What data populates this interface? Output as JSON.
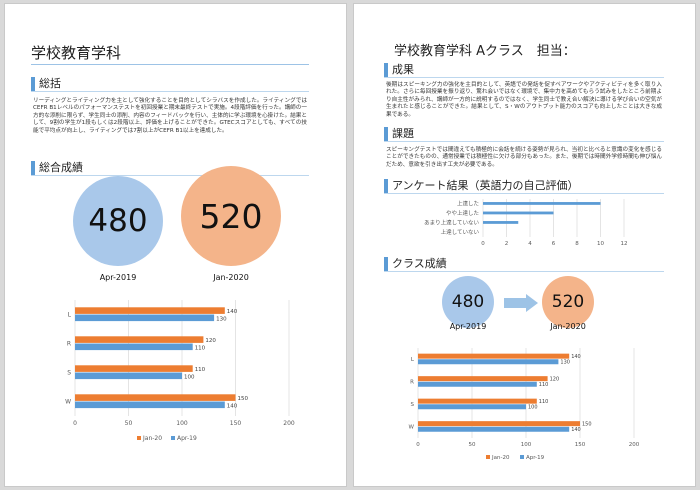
{
  "page1": {
    "title": "学校教育学科",
    "summary": {
      "heading": "総括",
      "text": "リーディングとライティング力を主として強化することを目的としてシラバスを作成した。ライティングではCEFR B1レベルのパフォーマンステストを初回授業と期末最終テストで実施。4段階評価を行った。講師の一方的な添削に限らず、学生同士の添削、内容のフィードバックを行い、主体的に学ぶ環境を心掛けた。結果として、9割の学生が1段もしくは2段階以上、評価を上げることができた。GTECスコアとしても、すべての技能で平均点が向上し、ライティングでは7割以上がCEFR B1以上を達成した。"
    },
    "overall": {
      "heading": "総合成績",
      "circles": [
        {
          "value": "480",
          "label": "Apr-2019",
          "color": "#a9c8ea"
        },
        {
          "value": "520",
          "label": "Jan-2020",
          "color": "#f4b48a"
        }
      ]
    }
  },
  "page2": {
    "title": "学校教育学科 Aクラス　担当：",
    "results": {
      "heading": "成果",
      "text": "後期はスピーキング力の強化を主目的として、英語での発話を促すペアワークやアクティビティを多く取り入れた。さらに毎回授業を振り返り、驚れ会いではなく環境で、集中力を高めてもらう試みをしたところ前期より自主性がみられ、講師が一方的に説明するのではなく、学生同士で教え合い解決に導ける学び合いの空気が生まれたと感じることができた。結果として、S・Wのアウトプット能力のスコアも向上したことは大きな成果である。"
    },
    "issues": {
      "heading": "課題",
      "text": "スピーキングテストでは間違えても積極的に会話を続ける姿勢が見られ、当初と比べると意識の変化を感じることができたものの、通常授業では積極性に欠ける部分もあった。また、後期では時間外学修時間も伸び悩んだため、意欲を引き出す工夫が必要である。"
    },
    "survey": {
      "heading": "アンケート結果（英語力の自己評価）"
    },
    "class_results": {
      "heading": "クラス成績",
      "circles": [
        {
          "value": "480",
          "label": "Apr-2019",
          "color": "#a9c8ea"
        },
        {
          "value": "520",
          "label": "Jan-2020",
          "color": "#f4b48a"
        }
      ]
    }
  },
  "chart_data": [
    {
      "type": "bar",
      "orientation": "horizontal",
      "categories": [
        "L",
        "R",
        "S",
        "W"
      ],
      "series": [
        {
          "name": "Jan-20",
          "values": [
            140,
            120,
            110,
            150
          ],
          "color": "#ed7d31"
        },
        {
          "name": "Apr-19",
          "values": [
            130,
            110,
            100,
            140
          ],
          "color": "#5b9bd5"
        }
      ],
      "xlim": [
        0,
        200
      ],
      "ticks": [
        0,
        50,
        100,
        150,
        200
      ],
      "grid": true,
      "legend": "bottom"
    },
    {
      "type": "bar",
      "orientation": "horizontal",
      "categories": [
        "上達した",
        "やや上達した",
        "あまり上達していない",
        "上達していない"
      ],
      "series": [
        {
          "name": "",
          "values": [
            10,
            6,
            3,
            0
          ],
          "color": "#5b9bd5"
        }
      ],
      "xlim": [
        0,
        12
      ],
      "ticks": [
        0,
        2,
        4,
        6,
        8,
        10,
        12
      ],
      "grid": true,
      "legend": "none"
    },
    {
      "type": "bar",
      "orientation": "horizontal",
      "categories": [
        "L",
        "R",
        "S",
        "W"
      ],
      "series": [
        {
          "name": "Jan-20",
          "values": [
            140,
            120,
            110,
            150
          ],
          "color": "#ed7d31"
        },
        {
          "name": "Apr-19",
          "values": [
            130,
            110,
            100,
            140
          ],
          "color": "#5b9bd5"
        }
      ],
      "xlim": [
        0,
        200
      ],
      "ticks": [
        0,
        50,
        100,
        150,
        200
      ],
      "grid": true,
      "legend": "bottom"
    }
  ],
  "arrow_color": "#9dc3e6"
}
